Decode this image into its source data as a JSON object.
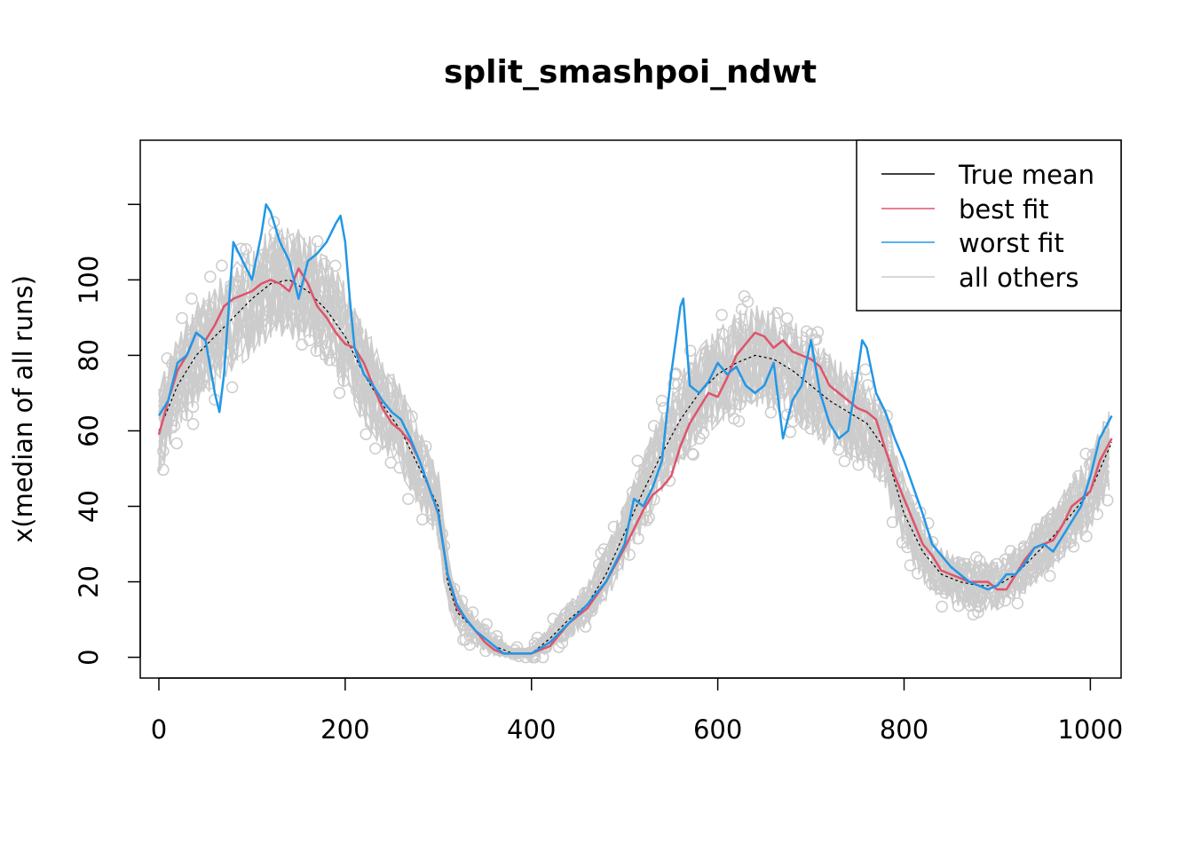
{
  "chart_data": {
    "type": "line",
    "title": "split_smashpoi_ndwt",
    "xlabel": "",
    "ylabel": "x(median of all runs)",
    "xlim": [
      -20,
      1033
    ],
    "ylim": [
      -5.5,
      137
    ],
    "xticks": [
      0,
      200,
      400,
      600,
      800,
      1000
    ],
    "yticks": [
      0,
      20,
      40,
      60,
      80,
      100
    ],
    "legend_position": "top-right",
    "colors": {
      "true_mean": "#000000",
      "best_fit": "#DF536B",
      "worst_fit": "#2297E6",
      "all_others": "#CCCCCC"
    },
    "legend": [
      "True mean",
      "best fit",
      "worst fit",
      "all others"
    ],
    "series": [
      {
        "name": "True mean",
        "x": [
          0,
          20,
          40,
          60,
          80,
          100,
          120,
          140,
          160,
          180,
          200,
          220,
          240,
          260,
          280,
          300,
          310,
          320,
          340,
          360,
          380,
          400,
          420,
          440,
          460,
          480,
          500,
          520,
          540,
          560,
          580,
          600,
          620,
          640,
          660,
          680,
          700,
          720,
          740,
          760,
          780,
          800,
          820,
          840,
          860,
          880,
          900,
          920,
          940,
          960,
          980,
          1000,
          1023
        ],
        "values": [
          60,
          72,
          80,
          85,
          90,
          95,
          99,
          100,
          97,
          92,
          85,
          75,
          67,
          60,
          50,
          40,
          20,
          12,
          7,
          3,
          1,
          1,
          5,
          10,
          14,
          22,
          33,
          44,
          54,
          63,
          70,
          75,
          78,
          80,
          79,
          76,
          72,
          68,
          65,
          62,
          55,
          38,
          28,
          22,
          20,
          19,
          19,
          22,
          27,
          32,
          38,
          44,
          57
        ]
      },
      {
        "name": "best fit",
        "x": [
          0,
          10,
          20,
          30,
          40,
          50,
          60,
          70,
          80,
          90,
          100,
          110,
          120,
          130,
          140,
          150,
          160,
          170,
          180,
          190,
          200,
          210,
          220,
          230,
          240,
          250,
          260,
          270,
          280,
          290,
          300,
          310,
          320,
          330,
          340,
          350,
          360,
          370,
          380,
          390,
          400,
          420,
          440,
          460,
          480,
          500,
          510,
          520,
          530,
          540,
          550,
          560,
          570,
          580,
          590,
          600,
          610,
          620,
          630,
          640,
          650,
          660,
          670,
          680,
          690,
          700,
          710,
          720,
          730,
          740,
          750,
          760,
          770,
          780,
          790,
          800,
          810,
          820,
          830,
          840,
          850,
          860,
          870,
          880,
          890,
          900,
          910,
          920,
          930,
          940,
          950,
          960,
          970,
          980,
          990,
          1000,
          1010,
          1023
        ],
        "values": [
          59,
          68,
          76,
          80,
          86,
          84,
          88,
          93,
          95,
          96,
          97,
          99,
          100,
          99,
          97,
          103,
          99,
          93,
          90,
          86,
          83,
          82,
          78,
          72,
          66,
          62,
          60,
          57,
          52,
          45,
          38,
          22,
          13,
          10,
          7,
          4,
          2,
          1,
          1,
          1,
          1,
          3,
          9,
          13,
          20,
          29,
          34,
          39,
          43,
          45,
          48,
          56,
          62,
          66,
          70,
          69,
          74,
          80,
          83,
          86,
          85,
          82,
          84,
          81,
          80,
          79,
          77,
          72,
          70,
          68,
          66,
          65,
          63,
          55,
          48,
          42,
          36,
          30,
          27,
          23,
          22,
          21,
          20,
          20,
          20,
          18,
          18,
          22,
          26,
          29,
          30,
          31,
          35,
          40,
          42,
          44,
          52,
          58
        ]
      },
      {
        "name": "worst fit",
        "x": [
          0,
          10,
          20,
          30,
          40,
          50,
          60,
          65,
          70,
          80,
          90,
          100,
          110,
          115,
          120,
          130,
          140,
          150,
          160,
          170,
          180,
          190,
          195,
          200,
          205,
          210,
          220,
          230,
          240,
          250,
          260,
          270,
          280,
          290,
          300,
          310,
          320,
          330,
          340,
          350,
          360,
          370,
          380,
          390,
          400,
          420,
          440,
          460,
          480,
          500,
          510,
          520,
          530,
          540,
          550,
          560,
          563,
          570,
          580,
          590,
          600,
          610,
          620,
          630,
          640,
          650,
          660,
          670,
          680,
          690,
          700,
          710,
          720,
          730,
          740,
          750,
          755,
          760,
          770,
          780,
          790,
          800,
          810,
          820,
          830,
          840,
          850,
          860,
          870,
          880,
          890,
          900,
          910,
          920,
          930,
          940,
          950,
          960,
          970,
          980,
          990,
          1000,
          1010,
          1023
        ],
        "values": [
          64,
          68,
          78,
          80,
          86,
          84,
          70,
          65,
          75,
          110,
          105,
          100,
          112,
          120,
          118,
          110,
          105,
          95,
          105,
          107,
          110,
          115,
          117,
          110,
          95,
          82,
          75,
          72,
          68,
          65,
          63,
          58,
          52,
          45,
          38,
          22,
          14,
          10,
          7,
          5,
          3,
          1,
          1,
          1,
          1,
          4,
          9,
          14,
          20,
          30,
          42,
          40,
          45,
          52,
          75,
          93,
          95,
          72,
          70,
          73,
          78,
          75,
          77,
          72,
          70,
          72,
          78,
          58,
          68,
          72,
          84,
          70,
          62,
          58,
          60,
          75,
          84,
          82,
          70,
          65,
          58,
          52,
          45,
          38,
          30,
          27,
          24,
          22,
          20,
          19,
          18,
          19,
          22,
          22,
          25,
          29,
          30,
          28,
          32,
          36,
          40,
          48,
          58,
          64
        ]
      }
    ]
  }
}
